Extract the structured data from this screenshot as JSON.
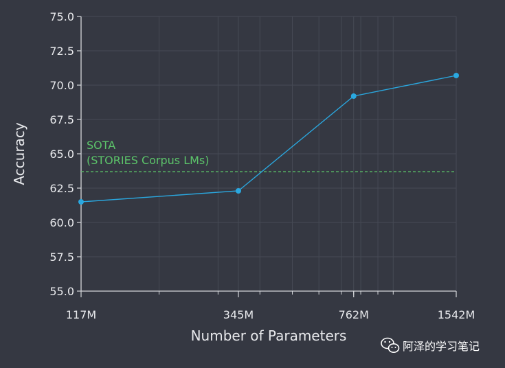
{
  "chart_data": {
    "type": "line",
    "xlabel": "Number of Parameters",
    "ylabel": "Accuracy",
    "x_scale": "log",
    "x": [
      117,
      345,
      762,
      1542
    ],
    "x_tick_labels": [
      "117M",
      "345M",
      "762M",
      "1542M"
    ],
    "y_ticks": [
      55.0,
      57.5,
      60.0,
      62.5,
      65.0,
      67.5,
      70.0,
      72.5,
      75.0
    ],
    "y_tick_labels": [
      "55.0",
      "57.5",
      "60.0",
      "62.5",
      "65.0",
      "67.5",
      "70.0",
      "72.5",
      "75.0"
    ],
    "ylim": [
      55,
      75
    ],
    "grid": true,
    "series": [
      {
        "values": [
          61.5,
          62.3,
          69.2,
          70.7
        ],
        "color": "#2aa8e0"
      }
    ],
    "reference_line": {
      "value": 63.7,
      "label_line1": "SOTA",
      "label_line2": "(STORIES Corpus LMs)",
      "color": "#5cc46a",
      "style": "dashed"
    }
  },
  "watermark": {
    "text": "阿泽的学习笔记",
    "icon": "wechat-icon"
  }
}
